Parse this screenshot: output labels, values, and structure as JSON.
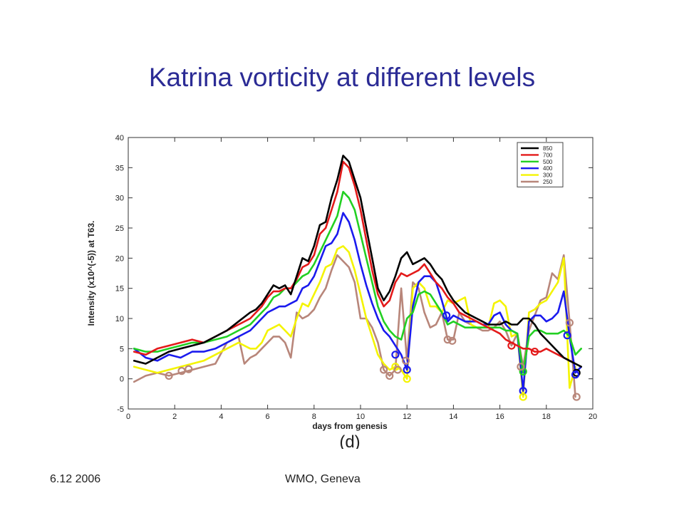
{
  "slide": {
    "title": "Katrina  vorticity at different levels",
    "footer_left": "6.12 2006",
    "footer_center": "WMO, Geneva"
  },
  "chart_data": {
    "type": "line",
    "xlabel": "days from genesis",
    "ylabel": "Intensity (x10^(-5)) at T63.",
    "panel_label": "(d)",
    "xlim": [
      0,
      20
    ],
    "ylim": [
      -5,
      40
    ],
    "xticks": [
      0,
      2,
      4,
      6,
      8,
      10,
      12,
      14,
      16,
      18,
      20
    ],
    "yticks": [
      -5,
      0,
      5,
      10,
      15,
      20,
      25,
      30,
      35,
      40
    ],
    "grid": false,
    "legend_position": "top-right",
    "series": [
      {
        "name": "850",
        "color": "#000000",
        "x": [
          0.25,
          0.75,
          1.25,
          1.75,
          2.25,
          2.75,
          3.25,
          3.75,
          4.25,
          4.75,
          5.25,
          5.5,
          5.75,
          6,
          6.25,
          6.5,
          6.75,
          7,
          7.25,
          7.5,
          7.75,
          8,
          8.25,
          8.5,
          8.75,
          9,
          9.25,
          9.5,
          9.75,
          10,
          10.25,
          10.5,
          10.75,
          11,
          11.25,
          11.5,
          11.75,
          12,
          12.25,
          12.5,
          12.75,
          13,
          13.25,
          13.5,
          13.75,
          14,
          14.25,
          14.5,
          14.75,
          15,
          15.25,
          15.5,
          15.75,
          16,
          16.25,
          16.5,
          16.75,
          17,
          17.25,
          17.5,
          17.75,
          18,
          18.25,
          18.5,
          18.75,
          19,
          19.25,
          19.5
        ],
        "y": [
          3,
          2.5,
          3.5,
          4.5,
          5,
          5.5,
          6,
          7,
          8,
          9.5,
          11,
          11.5,
          12.5,
          14,
          15.5,
          15,
          15.5,
          14,
          17,
          20,
          19.5,
          22,
          25.5,
          26,
          30,
          33,
          37,
          36,
          33,
          30,
          25,
          20,
          15,
          13,
          14.5,
          17,
          20,
          21,
          19,
          19.5,
          20,
          19,
          17.5,
          16.5,
          14.5,
          13,
          12,
          11,
          10.5,
          10,
          9.5,
          9,
          9,
          9,
          9.5,
          9,
          9,
          10,
          10,
          9,
          7.5,
          6.5,
          5.5,
          4.5,
          3.5,
          3,
          2.5,
          2
        ]
      },
      {
        "name": "700",
        "color": "#e31a1a",
        "x": [
          0.25,
          0.75,
          1.25,
          1.75,
          2.25,
          2.75,
          3.25,
          3.75,
          4.25,
          4.75,
          5.25,
          5.5,
          5.75,
          6,
          6.25,
          6.5,
          6.75,
          7,
          7.25,
          7.5,
          7.75,
          8,
          8.25,
          8.5,
          8.75,
          9,
          9.25,
          9.5,
          9.75,
          10,
          10.25,
          10.5,
          10.75,
          11,
          11.25,
          11.5,
          11.75,
          12,
          12.25,
          12.5,
          12.75,
          13,
          13.25,
          13.5,
          13.75,
          14,
          14.25,
          14.5,
          14.75,
          15,
          15.25,
          15.5,
          15.75,
          16,
          16.25,
          16.5,
          16.75,
          17,
          17.25,
          17.5,
          17.75,
          18,
          18.25,
          18.5,
          18.75,
          19,
          19.25
        ],
        "y": [
          4.5,
          4,
          5,
          5.5,
          6,
          6.5,
          6,
          7,
          8,
          9,
          10,
          11,
          12,
          13.5,
          14.5,
          14.5,
          15,
          15,
          16.5,
          18.5,
          19,
          20.5,
          24,
          25,
          28,
          31,
          36,
          35,
          32,
          28,
          23,
          18,
          14,
          12,
          13,
          16,
          17.5,
          17,
          17.5,
          18,
          19,
          17.5,
          16,
          15,
          13.5,
          12.5,
          11,
          10.5,
          10,
          9.5,
          9,
          8.5,
          8,
          7.5,
          6.5,
          6,
          5.5,
          5,
          5,
          4.5,
          4.5,
          5,
          4.5,
          4,
          3.5,
          3,
          2.5
        ]
      },
      {
        "name": "500",
        "color": "#22d022",
        "x": [
          0.25,
          0.75,
          1.25,
          1.75,
          2.25,
          2.75,
          3.25,
          3.75,
          4.25,
          4.75,
          5.25,
          5.5,
          5.75,
          6,
          6.25,
          6.5,
          6.75,
          7,
          7.25,
          7.5,
          7.75,
          8,
          8.25,
          8.5,
          8.75,
          9,
          9.25,
          9.5,
          9.75,
          10,
          10.25,
          10.5,
          10.75,
          11,
          11.25,
          11.5,
          11.75,
          12,
          12.25,
          12.5,
          12.75,
          13,
          13.25,
          13.5,
          13.75,
          14,
          14.25,
          14.5,
          14.75,
          15,
          15.25,
          15.5,
          15.75,
          16,
          16.25,
          16.5,
          16.75,
          17,
          17.25,
          17.5,
          17.75,
          18,
          18.25,
          18.5,
          18.75,
          19,
          19.25,
          19.5
        ],
        "y": [
          5,
          4.5,
          4.5,
          5,
          5.5,
          6,
          6,
          6.5,
          7,
          8,
          9,
          10,
          11,
          12,
          13.5,
          14,
          15,
          15,
          16,
          17,
          17.5,
          19,
          21,
          23,
          25,
          27,
          31,
          30,
          28,
          24,
          20,
          16,
          12,
          9.5,
          8,
          7,
          6.5,
          10,
          11,
          14,
          14.5,
          14,
          12.5,
          11,
          9,
          9.5,
          9,
          8.5,
          8.5,
          8.5,
          8.5,
          8.5,
          8.5,
          8.5,
          8,
          8,
          7.5,
          1,
          7,
          8,
          8,
          7.5,
          7.5,
          7.5,
          8,
          7,
          4,
          5
        ]
      },
      {
        "name": "400",
        "color": "#1a1aee",
        "x": [
          0.25,
          0.75,
          1.25,
          1.75,
          2.25,
          2.75,
          3.25,
          3.75,
          4.25,
          4.75,
          5.25,
          5.5,
          5.75,
          6,
          6.25,
          6.5,
          6.75,
          7,
          7.25,
          7.5,
          7.75,
          8,
          8.25,
          8.5,
          8.75,
          9,
          9.25,
          9.5,
          9.75,
          10,
          10.25,
          10.5,
          10.75,
          11,
          11.25,
          11.5,
          11.75,
          12,
          12.25,
          12.5,
          12.75,
          13,
          13.25,
          13.5,
          13.75,
          14,
          14.25,
          14.5,
          14.75,
          15,
          15.25,
          15.5,
          15.75,
          16,
          16.25,
          16.5,
          16.75,
          17,
          17.25,
          17.5,
          17.75,
          18,
          18.25,
          18.5,
          18.75,
          19,
          19.25,
          19.5
        ],
        "y": [
          5,
          3.5,
          3,
          4,
          3.5,
          4.5,
          4.5,
          5,
          6,
          7,
          8,
          9,
          10,
          11,
          11.5,
          12,
          12,
          12.5,
          13,
          15,
          15.5,
          17,
          19.5,
          22,
          22.5,
          24,
          27.5,
          26,
          23,
          19,
          15.5,
          12.5,
          10,
          8,
          7,
          5.5,
          4,
          1.5,
          12,
          16,
          17,
          17,
          16,
          13,
          9.5,
          10.5,
          10,
          9.5,
          9.5,
          9.5,
          9,
          9,
          10.5,
          11,
          9,
          8,
          7.5,
          -2,
          9.5,
          10.5,
          10.5,
          9.5,
          10,
          11,
          14.5,
          7,
          1,
          2
        ]
      },
      {
        "name": "300",
        "color": "#f4f400",
        "x": [
          0.25,
          0.75,
          1.25,
          1.75,
          2.25,
          2.75,
          3.25,
          3.75,
          4.25,
          4.75,
          5.25,
          5.5,
          5.75,
          6,
          6.25,
          6.5,
          6.75,
          7,
          7.25,
          7.5,
          7.75,
          8,
          8.25,
          8.5,
          8.75,
          9,
          9.25,
          9.5,
          9.75,
          10,
          10.25,
          10.5,
          10.75,
          11,
          11.25,
          11.5,
          11.75,
          12,
          12.25,
          12.5,
          12.75,
          13,
          13.25,
          13.5,
          13.75,
          14,
          14.25,
          14.5,
          14.75,
          15,
          15.25,
          15.5,
          15.75,
          16,
          16.25,
          16.5,
          16.75,
          17,
          17.25,
          17.5,
          17.75,
          18,
          18.25,
          18.5,
          18.75,
          19,
          19.25
        ],
        "y": [
          2,
          1.5,
          1,
          1.5,
          2,
          2.5,
          3,
          4,
          5,
          6,
          5,
          5,
          6,
          8,
          8.5,
          9,
          8,
          7,
          10,
          12.5,
          12,
          14,
          16,
          18.5,
          19,
          21.5,
          22,
          21,
          18,
          14,
          10,
          7,
          4,
          2.5,
          1.5,
          2,
          1.5,
          0,
          15,
          16,
          15,
          12,
          12,
          11,
          13,
          12.5,
          13,
          13.5,
          9,
          8.5,
          8.5,
          8.5,
          12.5,
          13,
          12,
          7,
          7.5,
          -3,
          11,
          11.5,
          12.5,
          13,
          14.5,
          16,
          20,
          -1.5,
          2
        ]
      },
      {
        "name": "250",
        "color": "#b8867a",
        "x": [
          0.25,
          0.75,
          1.25,
          1.75,
          2.25,
          2.75,
          3.25,
          3.75,
          4.25,
          4.5,
          4.75,
          5,
          5.25,
          5.5,
          5.75,
          6,
          6.25,
          6.5,
          6.75,
          7,
          7.25,
          7.5,
          7.75,
          8,
          8.25,
          8.5,
          8.75,
          9,
          9.25,
          9.5,
          9.75,
          10,
          10.25,
          10.5,
          10.75,
          11,
          11.25,
          11.5,
          11.75,
          12,
          12.25,
          12.5,
          12.75,
          13,
          13.25,
          13.5,
          13.75,
          14,
          14.25,
          14.5,
          14.75,
          15,
          15.25,
          15.5,
          15.75,
          16,
          16.25,
          16.5,
          16.75,
          17,
          17.25,
          17.5,
          17.75,
          18,
          18.25,
          18.5,
          18.75,
          19,
          19.25
        ],
        "y": [
          -0.5,
          0.5,
          1,
          0.5,
          1,
          1.5,
          2,
          2.5,
          6,
          6.5,
          7,
          2.5,
          3.5,
          4,
          5,
          6,
          7,
          7,
          6,
          3.5,
          11,
          10,
          10.5,
          11.5,
          13.5,
          15,
          18,
          20.5,
          19.5,
          18.5,
          16,
          10,
          10,
          8.5,
          6,
          1.5,
          0.5,
          1.5,
          15,
          3,
          16,
          15,
          11,
          8.5,
          9,
          11,
          6.5,
          6.5,
          11,
          9.5,
          9,
          8.5,
          8,
          8,
          8.5,
          9.5,
          8,
          5.5,
          7.5,
          2,
          8,
          10.5,
          13,
          13.5,
          17.5,
          16.5,
          20.5,
          9.5,
          -3
        ]
      }
    ],
    "markers": [
      {
        "series": "850",
        "x": 19.3,
        "y": 1
      },
      {
        "series": "700",
        "x": 16.5,
        "y": 5.5
      },
      {
        "series": "700",
        "x": 17.5,
        "y": 4.5
      },
      {
        "series": "500",
        "x": 17.0,
        "y": 1.2
      },
      {
        "series": "400",
        "x": 11.5,
        "y": 4
      },
      {
        "series": "400",
        "x": 12.0,
        "y": 1.5
      },
      {
        "series": "400",
        "x": 13.7,
        "y": 10.5
      },
      {
        "series": "400",
        "x": 17.0,
        "y": -2
      },
      {
        "series": "400",
        "x": 18.9,
        "y": 7.2
      },
      {
        "series": "400",
        "x": 19.25,
        "y": 0.7
      },
      {
        "series": "300",
        "x": 11.5,
        "y": 2
      },
      {
        "series": "300",
        "x": 12.0,
        "y": 0
      },
      {
        "series": "300",
        "x": 17.0,
        "y": -3
      },
      {
        "series": "250",
        "x": 1.75,
        "y": 0.5
      },
      {
        "series": "250",
        "x": 2.3,
        "y": 1.3
      },
      {
        "series": "250",
        "x": 2.6,
        "y": 1.6
      },
      {
        "series": "250",
        "x": 11.0,
        "y": 1.5
      },
      {
        "series": "250",
        "x": 11.25,
        "y": 0.5
      },
      {
        "series": "250",
        "x": 11.6,
        "y": 1.5
      },
      {
        "series": "250",
        "x": 11.95,
        "y": 3
      },
      {
        "series": "250",
        "x": 13.75,
        "y": 6.5
      },
      {
        "series": "250",
        "x": 13.95,
        "y": 6.3
      },
      {
        "series": "250",
        "x": 16.9,
        "y": 2
      },
      {
        "series": "250",
        "x": 19.0,
        "y": 9.3
      },
      {
        "series": "250",
        "x": 19.3,
        "y": -3
      }
    ]
  }
}
